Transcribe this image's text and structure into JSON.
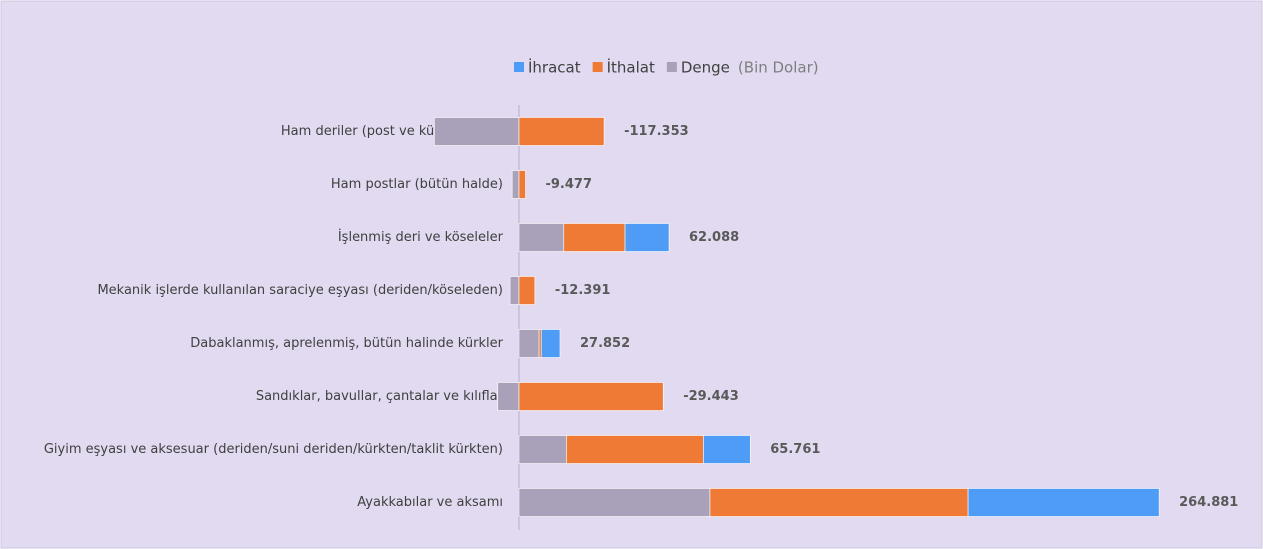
{
  "chart_data": {
    "type": "stacked-bar-horizontal",
    "unit": "(Bin Dolar)",
    "categories": [
      "Ham deriler (post ve kürk dışında)",
      "Ham postlar (bütün halde)",
      "İşlenmiş deri ve köseleler",
      "Mekanik işlerde kullanılan saraciye eşyası (deriden/köseleden)",
      "Dabaklanmış, aprelenmiş, bütün halinde kürkler",
      "Sandıklar, bavullar, çantalar ve kılıflar",
      "Giyim eşyası ve aksesuar (deriden/suni deriden/kürkten/taklit kürkten)",
      "Ayakkabılar ve aksamı"
    ],
    "series": [
      {
        "name": "İhracat",
        "color": "#4e9cf5",
        "values": [
          0,
          0,
          61000,
          0,
          26000,
          0,
          65000,
          265000
        ]
      },
      {
        "name": "İthalat",
        "color": "#ee7a35",
        "values": [
          118000,
          9000,
          85000,
          22000,
          3000,
          200000,
          190000,
          358000
        ]
      },
      {
        "name": "Denge",
        "color": "#a9a0b9",
        "values": [
          -117353,
          -9477,
          62088,
          -12391,
          27852,
          -29443,
          65761,
          264881
        ],
        "value_labels": [
          "-117.353",
          "-9.477",
          "62.088",
          "-12.391",
          "27.852",
          "-29.443",
          "65.761",
          "264.881"
        ]
      }
    ],
    "legend": "top"
  }
}
